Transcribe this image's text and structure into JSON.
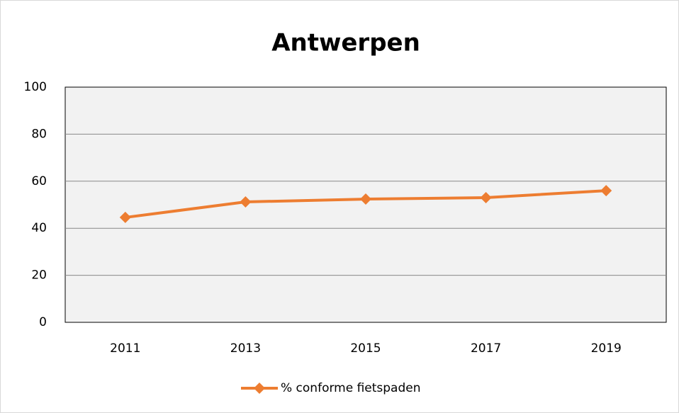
{
  "chart_data": {
    "type": "line",
    "title": "Antwerpen",
    "categories": [
      "2011",
      "2013",
      "2015",
      "2017",
      "2019"
    ],
    "series": [
      {
        "name": "% conforme fietspaden",
        "color": "#ed7d31",
        "values": [
          44.6,
          51.2,
          52.4,
          53,
          56
        ]
      }
    ],
    "ylim": [
      0,
      100
    ],
    "yticks": [
      0,
      20,
      40,
      60,
      80,
      100
    ],
    "grid": true,
    "legend": "bottom"
  }
}
